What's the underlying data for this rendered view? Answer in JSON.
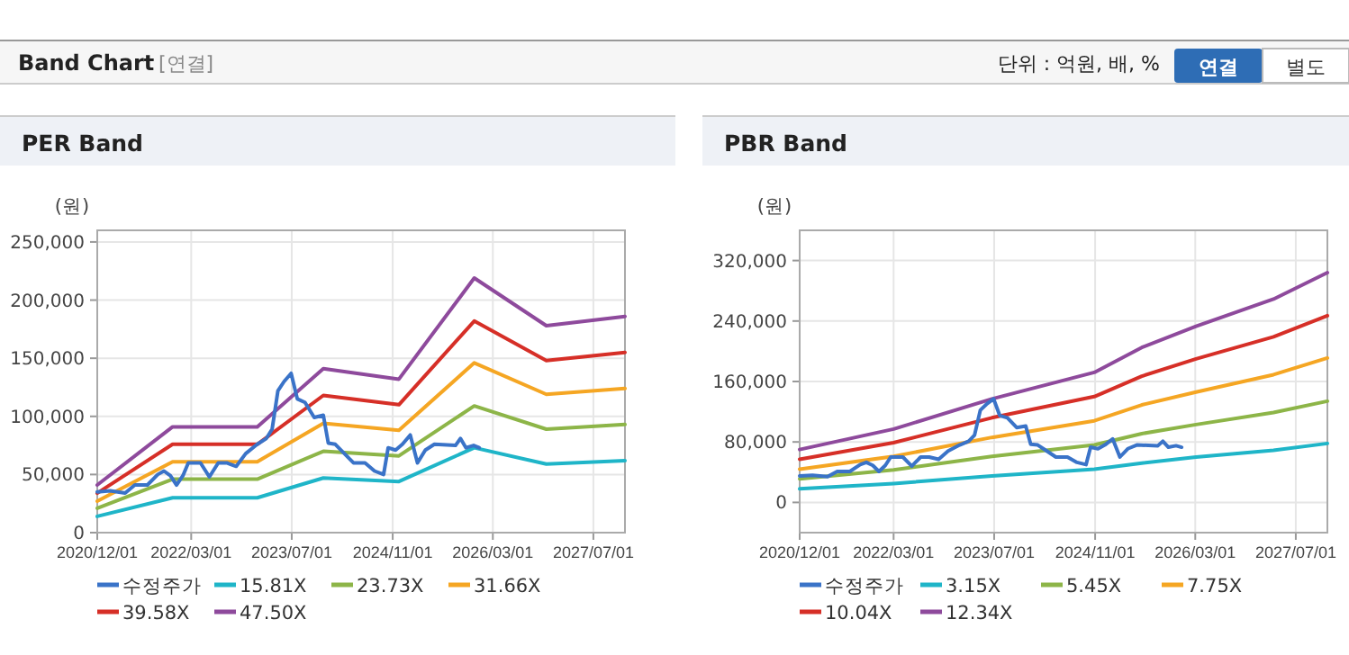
{
  "chart_data": [
    {
      "type": "line",
      "title": "PER Band",
      "ylabel": "(원)",
      "annotations": [
        "Band Chart",
        "[연결]",
        "단위 : 억원, 배, %",
        "연결",
        "별도"
      ],
      "grid": true,
      "legend": "bottom",
      "xlim": [
        "2020-12-01",
        "2027-12-01"
      ],
      "ylim": [
        0,
        260000
      ],
      "xticks": [
        {
          "value": "2020-12-01",
          "label": "2020/12/01"
        },
        {
          "value": "2022-03-01",
          "label": "2022/03/01"
        },
        {
          "value": "2023-07-01",
          "label": "2023/07/01"
        },
        {
          "value": "2024-11-01",
          "label": "2024/11/01"
        },
        {
          "value": "2026-03-01",
          "label": "2026/03/01"
        },
        {
          "value": "2027-07-01",
          "label": "2027/07/01"
        }
      ],
      "yticks": [
        {
          "value": 0,
          "label": "0"
        },
        {
          "value": 50000,
          "label": "50,000"
        },
        {
          "value": 100000,
          "label": "100,000"
        },
        {
          "value": 150000,
          "label": "150,000"
        },
        {
          "value": 200000,
          "label": "200,000"
        },
        {
          "value": 250000,
          "label": "250,000"
        }
      ],
      "series": [
        {
          "name": "수정주가",
          "color": "#3a73c8",
          "x": [
            "2020-12-01",
            "2021-02-01",
            "2021-04-15",
            "2021-06-01",
            "2021-08-01",
            "2021-09-20",
            "2021-10-20",
            "2021-11-20",
            "2021-12-20",
            "2022-01-20",
            "2022-02-15",
            "2022-04-15",
            "2022-05-28",
            "2022-07-10",
            "2022-08-20",
            "2022-10-05",
            "2022-11-20",
            "2023-01-15",
            "2023-02-28",
            "2023-03-28",
            "2023-04-25",
            "2023-05-25",
            "2023-06-28",
            "2023-07-28",
            "2023-09-03",
            "2023-10-18",
            "2023-12-01",
            "2023-12-25",
            "2024-01-28",
            "2024-03-12",
            "2024-04-25",
            "2024-06-20",
            "2024-08-05",
            "2024-09-18",
            "2024-10-10",
            "2024-11-15",
            "2024-12-18",
            "2025-01-25",
            "2025-03-01",
            "2025-04-08",
            "2025-05-22",
            "2025-09-01",
            "2025-09-25",
            "2025-10-22",
            "2025-11-28",
            "2025-12-25"
          ],
          "values": [
            35000,
            36000,
            34000,
            41000,
            41000,
            50000,
            53000,
            49000,
            41000,
            49000,
            60000,
            60000,
            48000,
            60000,
            60000,
            57000,
            68000,
            76000,
            81000,
            89000,
            122000,
            130000,
            137000,
            115000,
            112000,
            99000,
            101000,
            77000,
            76000,
            68000,
            60000,
            60000,
            53000,
            50000,
            73000,
            71000,
            76000,
            84000,
            60000,
            71000,
            76000,
            75000,
            81000,
            73000,
            75000,
            73000
          ]
        },
        {
          "name": "15.81X",
          "color": "#1fb5c8",
          "x": [
            "2020-12-01",
            "2021-12-01",
            "2023-01-15",
            "2023-12-01",
            "2024-12-01",
            "2025-12-01",
            "2026-11-15",
            "2027-12-01"
          ],
          "values": [
            14000,
            30000,
            30000,
            47000,
            44000,
            73000,
            59000,
            62000
          ]
        },
        {
          "name": "23.73X",
          "color": "#8db548",
          "x": [
            "2020-12-01",
            "2021-12-01",
            "2023-01-15",
            "2023-12-01",
            "2024-12-01",
            "2025-12-01",
            "2026-11-15",
            "2027-12-01"
          ],
          "values": [
            21000,
            46000,
            46000,
            70000,
            66000,
            109000,
            89000,
            93000
          ]
        },
        {
          "name": "31.66X",
          "color": "#f5a623",
          "x": [
            "2020-12-01",
            "2021-12-01",
            "2023-01-15",
            "2023-12-01",
            "2024-12-01",
            "2025-12-01",
            "2026-11-15",
            "2027-12-01"
          ],
          "values": [
            27000,
            61000,
            61000,
            94000,
            88000,
            146000,
            119000,
            124000
          ]
        },
        {
          "name": "39.58X",
          "color": "#d62f27",
          "x": [
            "2020-12-01",
            "2021-12-01",
            "2023-01-15",
            "2023-12-01",
            "2024-12-01",
            "2025-12-01",
            "2026-11-15",
            "2027-12-01"
          ],
          "values": [
            34000,
            76000,
            76000,
            118000,
            110000,
            182000,
            148000,
            155000
          ]
        },
        {
          "name": "47.50X",
          "color": "#8e4a9c",
          "x": [
            "2020-12-01",
            "2021-12-01",
            "2023-01-15",
            "2023-12-01",
            "2024-12-01",
            "2025-12-01",
            "2026-11-15",
            "2027-12-01"
          ],
          "values": [
            41000,
            91000,
            91000,
            141000,
            132000,
            219000,
            178000,
            186000
          ]
        }
      ]
    },
    {
      "type": "line",
      "title": "PBR Band",
      "ylabel": "(원)",
      "grid": true,
      "legend": "bottom",
      "xlim": [
        "2020-12-01",
        "2027-12-01"
      ],
      "ylim": [
        -40000,
        360000
      ],
      "xticks": [
        {
          "value": "2020-12-01",
          "label": "2020/12/01"
        },
        {
          "value": "2022-03-01",
          "label": "2022/03/01"
        },
        {
          "value": "2023-07-01",
          "label": "2023/07/01"
        },
        {
          "value": "2024-11-01",
          "label": "2024/11/01"
        },
        {
          "value": "2026-03-01",
          "label": "2026/03/01"
        },
        {
          "value": "2027-07-01",
          "label": "2027/07/01"
        }
      ],
      "yticks": [
        {
          "value": 0,
          "label": "0"
        },
        {
          "value": 80000,
          "label": "80,000"
        },
        {
          "value": 160000,
          "label": "160,000"
        },
        {
          "value": 240000,
          "label": "240,000"
        },
        {
          "value": 320000,
          "label": "320,000"
        }
      ],
      "series": [
        {
          "name": "수정주가",
          "color": "#3a73c8",
          "x": [
            "2020-12-01",
            "2021-02-01",
            "2021-04-15",
            "2021-06-01",
            "2021-08-01",
            "2021-09-20",
            "2021-10-20",
            "2021-11-20",
            "2021-12-20",
            "2022-01-20",
            "2022-02-15",
            "2022-04-15",
            "2022-05-28",
            "2022-07-10",
            "2022-08-20",
            "2022-10-05",
            "2022-11-20",
            "2023-01-15",
            "2023-02-28",
            "2023-03-28",
            "2023-04-25",
            "2023-05-25",
            "2023-06-28",
            "2023-07-28",
            "2023-09-03",
            "2023-10-18",
            "2023-12-01",
            "2023-12-25",
            "2024-01-28",
            "2024-03-12",
            "2024-04-25",
            "2024-06-20",
            "2024-08-05",
            "2024-09-18",
            "2024-10-10",
            "2024-11-15",
            "2024-12-18",
            "2025-01-25",
            "2025-03-01",
            "2025-04-08",
            "2025-05-22",
            "2025-09-01",
            "2025-09-25",
            "2025-10-22",
            "2025-11-28",
            "2025-12-25"
          ],
          "values": [
            35000,
            36000,
            34000,
            41000,
            41000,
            50000,
            53000,
            49000,
            41000,
            49000,
            60000,
            60000,
            48000,
            60000,
            60000,
            57000,
            68000,
            76000,
            81000,
            89000,
            122000,
            130000,
            137000,
            115000,
            112000,
            99000,
            101000,
            77000,
            76000,
            68000,
            60000,
            60000,
            53000,
            50000,
            73000,
            71000,
            76000,
            84000,
            60000,
            71000,
            76000,
            75000,
            81000,
            73000,
            75000,
            73000
          ]
        },
        {
          "name": "3.15X",
          "color": "#1fb5c8",
          "x": [
            "2020-12-01",
            "2022-03-01",
            "2023-06-20",
            "2024-10-28",
            "2025-06-15",
            "2026-03-05",
            "2027-03-15",
            "2027-12-01"
          ],
          "values": [
            18000,
            25000,
            35000,
            44000,
            52000,
            60000,
            69000,
            78000
          ]
        },
        {
          "name": "5.45X",
          "color": "#8db548",
          "x": [
            "2020-12-01",
            "2022-03-01",
            "2023-06-20",
            "2024-10-28",
            "2025-06-15",
            "2026-03-05",
            "2027-03-15",
            "2027-12-01"
          ],
          "values": [
            31000,
            43000,
            61000,
            76000,
            91000,
            103000,
            119000,
            134000
          ]
        },
        {
          "name": "7.75X",
          "color": "#f5a623",
          "x": [
            "2020-12-01",
            "2022-03-01",
            "2023-06-20",
            "2024-10-28",
            "2025-06-15",
            "2026-03-05",
            "2027-03-15",
            "2027-12-01"
          ],
          "values": [
            44000,
            61000,
            86000,
            108000,
            129000,
            146000,
            169000,
            191000
          ]
        },
        {
          "name": "10.04X",
          "color": "#d62f27",
          "x": [
            "2020-12-01",
            "2022-03-01",
            "2023-06-20",
            "2024-10-28",
            "2025-06-15",
            "2026-03-05",
            "2027-03-15",
            "2027-12-01"
          ],
          "values": [
            57000,
            79000,
            112000,
            140000,
            167000,
            190000,
            219000,
            247000
          ]
        },
        {
          "name": "12.34X",
          "color": "#8e4a9c",
          "x": [
            "2020-12-01",
            "2022-03-01",
            "2023-06-20",
            "2024-10-28",
            "2025-06-15",
            "2026-03-05",
            "2027-03-15",
            "2027-12-01"
          ],
          "values": [
            70000,
            97000,
            137000,
            172000,
            205000,
            233000,
            269000,
            304000
          ]
        }
      ]
    }
  ]
}
